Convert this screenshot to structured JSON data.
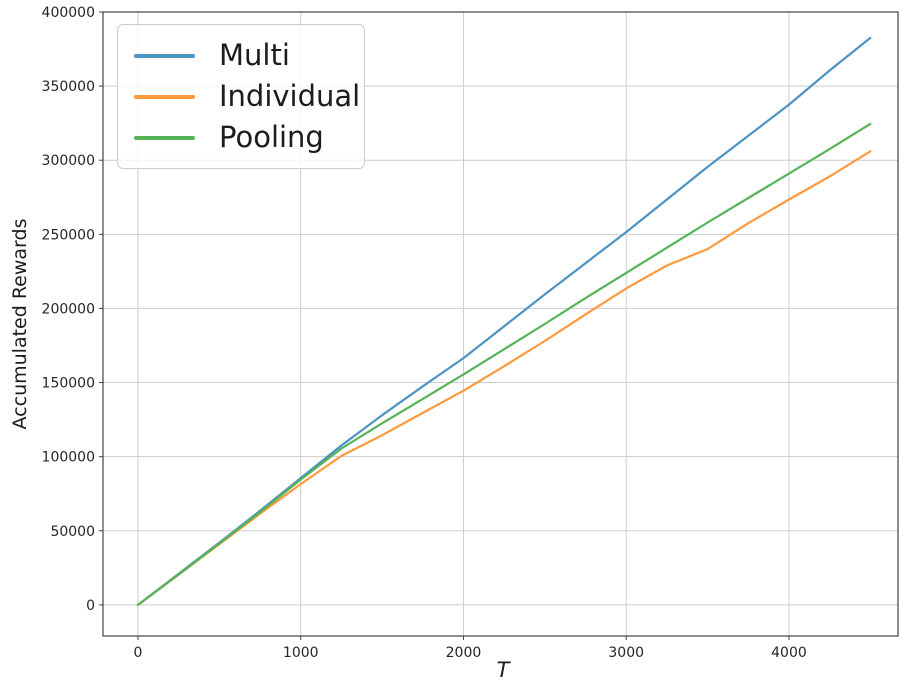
{
  "figure": {
    "background": "#ffffff",
    "text_color": "#262626",
    "spine_color": "#444444",
    "grid_color": "#cdcdcd"
  },
  "chart_data": {
    "type": "line",
    "title": "",
    "xlabel": "T",
    "ylabel": "Accumulated Rewards",
    "grid": true,
    "legend_position": "upper left",
    "xlim": [
      -215,
      4670
    ],
    "ylim": [
      -21000,
      400000
    ],
    "xticks": [
      0,
      1000,
      2000,
      3000,
      4000
    ],
    "yticks": [
      0,
      50000,
      100000,
      150000,
      200000,
      250000,
      300000,
      350000,
      400000
    ],
    "x": [
      0,
      250,
      500,
      750,
      1000,
      1250,
      1500,
      1750,
      2000,
      2250,
      2500,
      2750,
      3000,
      3250,
      3500,
      3750,
      4000,
      4250,
      4500
    ],
    "series": [
      {
        "name": "Multi",
        "color": "#4C92C3",
        "values": [
          0,
          21000,
          42000,
          63500,
          85500,
          107500,
          128000,
          147500,
          166500,
          188000,
          209500,
          230500,
          251500,
          273500,
          295500,
          316500,
          337500,
          360500,
          382500
        ]
      },
      {
        "name": "Individual",
        "color": "#FF993E",
        "values": [
          0,
          20500,
          41000,
          61500,
          81500,
          100500,
          114500,
          129500,
          144500,
          161000,
          178000,
          196000,
          213500,
          229000,
          240000,
          257500,
          273500,
          289000,
          306000
        ]
      },
      {
        "name": "Pooling",
        "color": "#56B356",
        "values": [
          0,
          20500,
          41500,
          62500,
          84500,
          105500,
          122500,
          139000,
          155500,
          172500,
          189500,
          207000,
          224000,
          241000,
          258000,
          274500,
          291000,
          307500,
          324500
        ]
      }
    ]
  }
}
